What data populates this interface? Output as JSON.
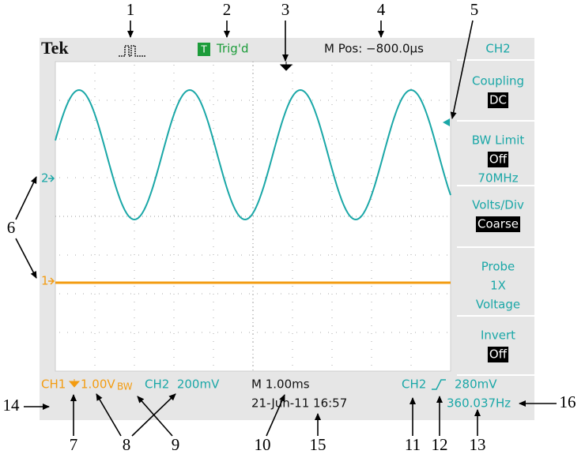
{
  "header": {
    "logo": "Tek",
    "trigger_box": "T",
    "status": "Trig'd",
    "position": "M Pos: −800.0µs",
    "channel": "CH2"
  },
  "menu": [
    {
      "label": "Coupling",
      "values": [
        "DC"
      ]
    },
    {
      "label": "BW Limit",
      "values": [
        "Off",
        "70MHz"
      ]
    },
    {
      "label": "Volts/Div",
      "values": [
        "Coarse"
      ]
    },
    {
      "label": "Probe",
      "values": [
        "1X",
        "Voltage"
      ]
    },
    {
      "label": "Invert",
      "values": [
        "Off"
      ]
    }
  ],
  "markers": {
    "ch2": "2",
    "ch1": "1"
  },
  "footer": {
    "ch1": "CH1",
    "ch1_scale": "1.00V",
    "ch1_bw": "BW",
    "ch2": "CH2  200mV",
    "timebase": "M 1.00ms",
    "date": "21-Jun-11 16:57",
    "trigger_source": "CH2",
    "trigger_level": "280mV",
    "frequency": "360.037Hz"
  },
  "callouts": [
    "1",
    "2",
    "3",
    "4",
    "5",
    "6",
    "7",
    "8",
    "9",
    "10",
    "11",
    "12",
    "13",
    "14",
    "15",
    "16"
  ]
}
